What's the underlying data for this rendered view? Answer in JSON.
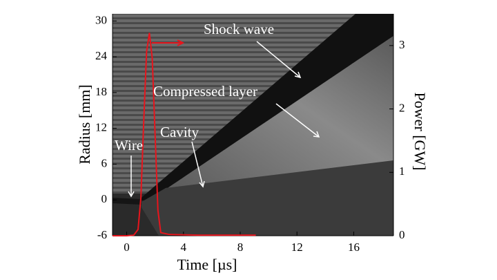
{
  "chart_data": {
    "type": "line",
    "x_label": "Time [µs]",
    "y_label": "Radius [mm]",
    "y2_label": "Power [GW]",
    "x": [
      -1,
      0,
      0.5,
      0.8,
      1.0,
      1.2,
      1.4,
      1.6,
      1.8,
      2.0,
      2.2,
      2.4,
      3,
      5,
      7,
      9.1
    ],
    "series": [
      {
        "color": "#e8141c",
        "axis": "y2",
        "values": [
          0,
          0,
          0.01,
          0.1,
          0.6,
          1.8,
          2.9,
          3.2,
          2.8,
          1.6,
          0.4,
          0.05,
          0.02,
          0.01,
          0.01,
          0.01
        ]
      }
    ],
    "xlim": [
      -1,
      18.8
    ],
    "xticks": [
      0,
      4,
      8,
      12,
      16
    ],
    "ylim": [
      -6,
      31.2
    ],
    "yticks": [
      -6,
      0,
      6,
      12,
      18,
      24,
      30
    ],
    "y2lim": [
      0,
      3.5
    ],
    "y2ticks": [
      0,
      1,
      2,
      3
    ],
    "annotations": [
      "Shock wave",
      "Compressed layer",
      "Cavity",
      "Wire"
    ]
  }
}
